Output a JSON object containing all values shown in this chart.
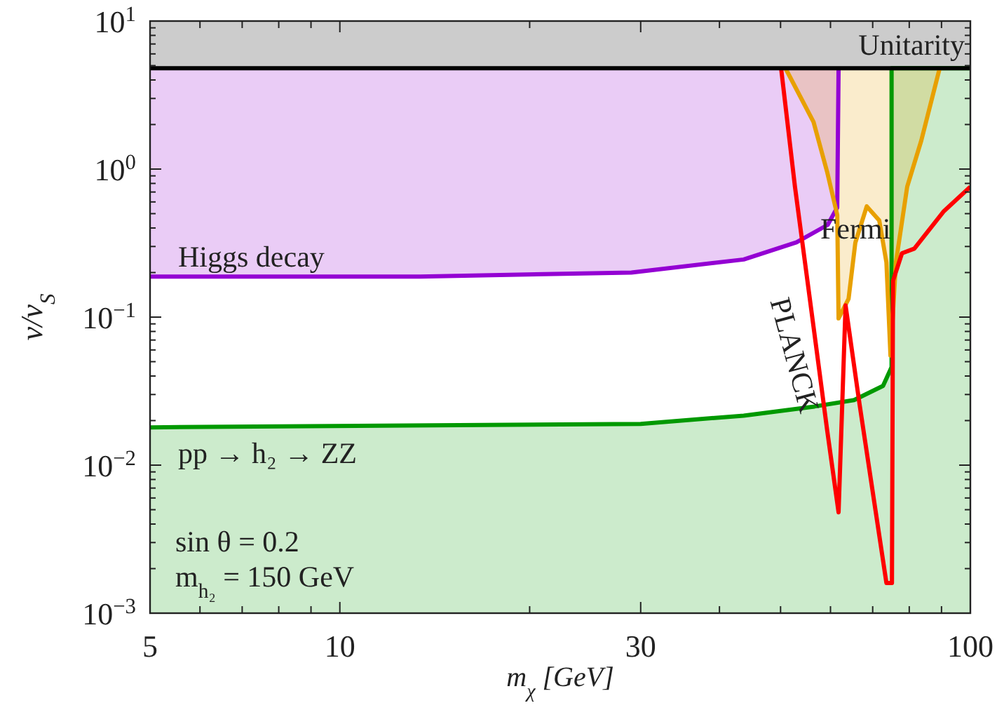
{
  "chart_data": {
    "type": "line",
    "xlabel": "m$_{χ}$ [GeV]",
    "ylabel": "v/v$_{S}$",
    "log": "xy",
    "xlim": [
      5,
      100
    ],
    "ylim": [
      0.001,
      10
    ],
    "xticks": [
      5,
      {
        "value": 6,
        "label": null
      },
      {
        "value": 7,
        "label": null
      },
      {
        "value": 8,
        "label": null
      },
      {
        "value": 9,
        "label": null
      },
      10,
      {
        "value": 20,
        "label": null
      },
      30,
      {
        "value": 40,
        "label": null
      },
      {
        "value": 50,
        "label": null
      },
      {
        "value": 60,
        "label": null
      },
      {
        "value": 70,
        "label": null
      },
      {
        "value": 80,
        "label": null
      },
      {
        "value": 90,
        "label": null
      },
      100
    ],
    "yticks": [
      {
        "value": 0.001,
        "label": "10$^{−3}$"
      },
      {
        "value": 0.002,
        "label": null
      },
      {
        "value": 0.003,
        "label": null
      },
      {
        "value": 0.004,
        "label": null
      },
      {
        "value": 0.005,
        "label": null
      },
      {
        "value": 0.006,
        "label": null
      },
      {
        "value": 0.007,
        "label": null
      },
      {
        "value": 0.008,
        "label": null
      },
      {
        "value": 0.009,
        "label": null
      },
      {
        "value": 0.01,
        "label": "10$^{−2}$"
      },
      {
        "value": 0.02,
        "label": null
      },
      {
        "value": 0.03,
        "label": null
      },
      {
        "value": 0.04,
        "label": null
      },
      {
        "value": 0.05,
        "label": null
      },
      {
        "value": 0.06,
        "label": null
      },
      {
        "value": 0.07,
        "label": null
      },
      {
        "value": 0.08,
        "label": null
      },
      {
        "value": 0.09,
        "label": null
      },
      {
        "value": 0.1,
        "label": "10$^{−1}$"
      },
      {
        "value": 0.2,
        "label": null
      },
      {
        "value": 0.3,
        "label": null
      },
      {
        "value": 0.4,
        "label": null
      },
      {
        "value": 0.5,
        "label": null
      },
      {
        "value": 0.6,
        "label": null
      },
      {
        "value": 0.7,
        "label": null
      },
      {
        "value": 0.8,
        "label": null
      },
      {
        "value": 0.9,
        "label": null
      },
      {
        "value": 1,
        "label": "10$^{0}$"
      },
      {
        "value": 2,
        "label": null
      },
      {
        "value": 3,
        "label": null
      },
      {
        "value": 4,
        "label": null
      },
      {
        "value": 5,
        "label": null
      },
      {
        "value": 6,
        "label": null
      },
      {
        "value": 7,
        "label": null
      },
      {
        "value": 8,
        "label": null
      },
      {
        "value": 9,
        "label": null
      },
      {
        "value": 10,
        "label": "10$^{1}$"
      }
    ],
    "series": [
      {
        "type": "area",
        "color": "#009900",
        "x": [
          5,
          30,
          43.7,
          56.6,
          65.4,
          72.7,
          75,
          75,
          100
        ],
        "values": [
          0.018,
          0.019,
          0.0216,
          0.0249,
          0.0275,
          0.0343,
          0.046,
          4.8,
          4.8
        ]
      },
      {
        "color": "#9400d3",
        "x": [
          5,
          13.4,
          29,
          43.7,
          53,
          59.4,
          61.5,
          61.8
        ],
        "values": [
          0.188,
          0.188,
          0.2,
          0.245,
          0.32,
          0.42,
          0.55,
          4.8
        ],
        "lower": [
          0.188,
          0.188,
          0.2,
          0.245,
          0.32,
          0.42,
          0.55,
          4.8
        ],
        "upper": [
          4.8,
          4.8,
          4.8,
          4.8,
          4.8,
          4.8,
          4.8,
          4.8
        ]
      },
      {
        "color": "#e8a000",
        "x": [
          50.9,
          56.4,
          59.3,
          61.5,
          61.8,
          64.1,
          65.7,
          68.5,
          71.7,
          73.6,
          74.7,
          76.2,
          79.4,
          83.6,
          89.4
        ],
        "values": [
          4.8,
          2.08,
          0.95,
          0.49,
          0.098,
          0.133,
          0.318,
          0.56,
          0.45,
          0.234,
          0.055,
          0.234,
          0.76,
          1.56,
          4.8
        ],
        "lower": [
          4.8,
          2.08,
          0.95,
          0.49,
          0.098,
          0.133,
          0.318,
          0.56,
          0.45,
          0.234,
          0.055,
          0.234,
          0.76,
          1.56,
          4.8
        ],
        "upper": [
          4.8,
          4.8,
          4.8,
          4.8,
          4.8,
          4.8,
          4.8,
          4.8,
          4.8,
          4.8,
          4.8,
          4.8,
          4.8,
          4.8,
          4.8
        ]
      },
      {
        "color": "#ff0000",
        "x": [
          50.1,
          52.7,
          56.4,
          59.3,
          61.8,
          63.4,
          66.7,
          73.6,
          75.1,
          75.4,
          77.9,
          81.5,
          90.8,
          100
        ],
        "values": [
          4.8,
          0.76,
          0.086,
          0.017,
          0.0048,
          0.12,
          0.026,
          0.0016,
          0.0016,
          0.176,
          0.27,
          0.29,
          0.52,
          0.76
        ]
      }
    ],
    "bands": [
      {
        "axis": "y",
        "from": 4.8,
        "to": 10,
        "label": "Unitarity",
        "color": "#cccccc"
      }
    ],
    "ref_lines": [
      {
        "axis": "y",
        "value": 4.8,
        "color": "#000000"
      }
    ],
    "annotations": [
      "Higgs decay",
      "Fermi",
      "PLANCK",
      "pp → h₂ → ZZ",
      "sin θ = 0.2",
      "m$_{h₂}$ = 150 GeV"
    ]
  }
}
